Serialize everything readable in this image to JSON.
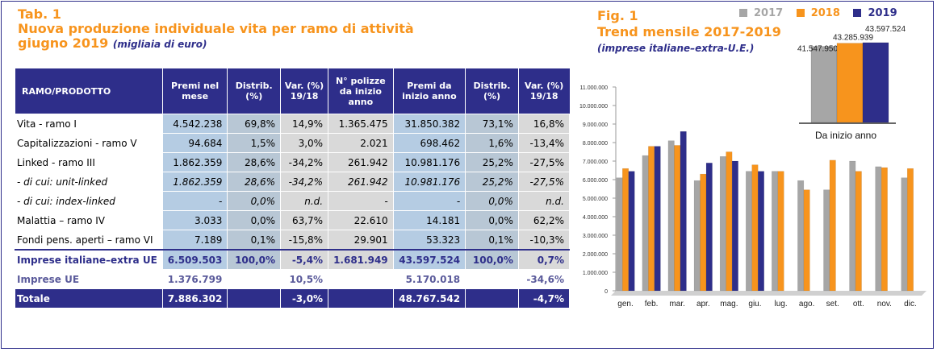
{
  "table": {
    "tab_label": "Tab. 1",
    "title": "Nuova produzione individuale vita per ramo di attività",
    "subtitle_date": "giugno 2019",
    "subtitle_unit": "(migliaia di euro)",
    "headers": [
      "RAMO/PRODOTTO",
      "Premi nel mese",
      "Distrib. (%)",
      "Var. (%) 19/18",
      "N° polizze da inizio anno",
      "Premi da inizio anno",
      "Distrib. (%)",
      "Var. (%) 19/18"
    ],
    "rows": [
      {
        "label": "Vita - ramo I",
        "values": [
          "4.542.238",
          "69,8%",
          "14,9%",
          "1.365.475",
          "31.850.382",
          "73,1%",
          "16,8%"
        ]
      },
      {
        "label": "Capitalizzazioni - ramo V",
        "values": [
          "94.684",
          "1,5%",
          "3,0%",
          "2.021",
          "698.462",
          "1,6%",
          "-13,4%"
        ]
      },
      {
        "label": "Linked - ramo III",
        "values": [
          "1.862.359",
          "28,6%",
          "-34,2%",
          "261.942",
          "10.981.176",
          "25,2%",
          "-27,5%"
        ]
      },
      {
        "label": "- di cui: unit-linked",
        "values": [
          "1.862.359",
          "28,6%",
          "-34,2%",
          "261.942",
          "10.981.176",
          "25,2%",
          "-27,5%"
        ]
      },
      {
        "label": "- di cui: index-linked",
        "values": [
          "-",
          "0,0%",
          "n.d.",
          "-",
          "-",
          "0,0%",
          "n.d."
        ]
      },
      {
        "label": "Malattia – ramo IV",
        "values": [
          "3.033",
          "0,0%",
          "63,7%",
          "22.610",
          "14.181",
          "0,0%",
          "62,2%"
        ]
      },
      {
        "label": "Fondi pens. aperti – ramo VI",
        "values": [
          "7.189",
          "0,1%",
          "-15,8%",
          "29.901",
          "53.323",
          "0,1%",
          "-10,3%"
        ]
      }
    ],
    "total_ita": {
      "label": "Imprese italiane–extra UE",
      "values": [
        "6.509.503",
        "100,0%",
        "-5,4%",
        "1.681.949",
        "43.597.524",
        "100,0%",
        "0,7%"
      ]
    },
    "total_ue": {
      "label": "Imprese UE",
      "values": [
        "1.376.799",
        "",
        "10,5%",
        "",
        "5.170.018",
        "",
        "-34,6%"
      ]
    },
    "total": {
      "label": "Totale",
      "values": [
        "7.886.302",
        "",
        "-3,0%",
        "",
        "48.767.542",
        "",
        "-4,7%"
      ]
    }
  },
  "figure": {
    "fig_label": "Fig. 1",
    "title": "Trend mensile 2017-2019",
    "subtitle": "(imprese italiane–extra-U.E.)",
    "inset_label": "Da inizio anno",
    "inset_value_labels": [
      "41.547.950",
      "43.285.939",
      "43.597.524"
    ]
  },
  "colors": {
    "y2017": "#a6a6a6",
    "y2018": "#f7941d",
    "y2019": "#2e2e8a",
    "navy": "#2e2e8a",
    "orange": "#f7941d"
  },
  "chart_data": [
    {
      "type": "bar",
      "title": "Trend mensile 2017-2019",
      "categories": [
        "gen.",
        "feb.",
        "mar.",
        "apr.",
        "mag.",
        "giu.",
        "lug.",
        "ago.",
        "set.",
        "ott.",
        "nov.",
        "dic."
      ],
      "series": [
        {
          "name": "2017",
          "values": [
            6100000,
            7300000,
            8100000,
            5950000,
            7250000,
            6450000,
            6450000,
            5950000,
            5450000,
            7000000,
            6700000,
            6100000
          ]
        },
        {
          "name": "2018",
          "values": [
            6600000,
            7800000,
            7850000,
            6300000,
            7500000,
            6800000,
            6450000,
            5450000,
            7050000,
            6450000,
            6650000,
            6600000
          ]
        },
        {
          "name": "2019",
          "values": [
            6450000,
            7800000,
            8600000,
            6900000,
            7000000,
            6450000,
            null,
            null,
            null,
            null,
            null,
            null
          ]
        }
      ],
      "y_ticks": [
        "0",
        "1.000.000",
        "2.000.000",
        "3.000.000",
        "4.000.000",
        "5.000.000",
        "6.000.000",
        "7.000.000",
        "8.000.000",
        "9.000.000",
        "10.000.000",
        "11.000.000"
      ],
      "ylim": [
        0,
        11000000
      ],
      "grid": false,
      "legend": "top"
    },
    {
      "type": "bar",
      "title": "Da inizio anno",
      "categories": [
        "2017",
        "2018",
        "2019"
      ],
      "values": [
        41547950,
        43285939,
        43597524
      ]
    }
  ]
}
